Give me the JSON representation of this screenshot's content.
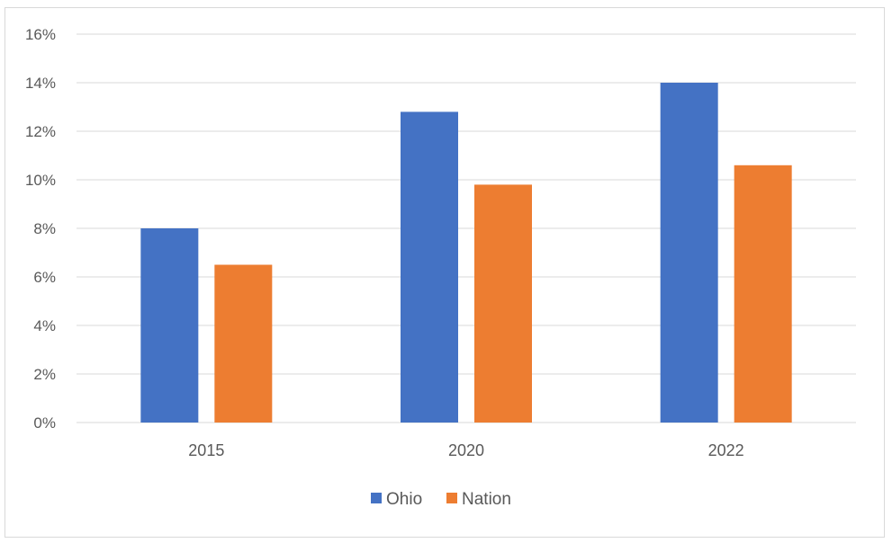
{
  "chart_data": {
    "type": "bar",
    "categories": [
      "2015",
      "2020",
      "2022"
    ],
    "series": [
      {
        "name": "Ohio",
        "color": "#4472c4",
        "values": [
          8.0,
          12.8,
          14.0
        ]
      },
      {
        "name": "Nation",
        "color": "#ed7d31",
        "values": [
          6.5,
          9.8,
          10.6
        ]
      }
    ],
    "y_ticks": [
      "0%",
      "2%",
      "4%",
      "6%",
      "8%",
      "10%",
      "12%",
      "14%",
      "16%"
    ],
    "ylim": [
      0,
      16
    ],
    "y_unit": "%",
    "grid": true,
    "legend_position": "bottom",
    "title": "",
    "xlabel": "",
    "ylabel": ""
  }
}
